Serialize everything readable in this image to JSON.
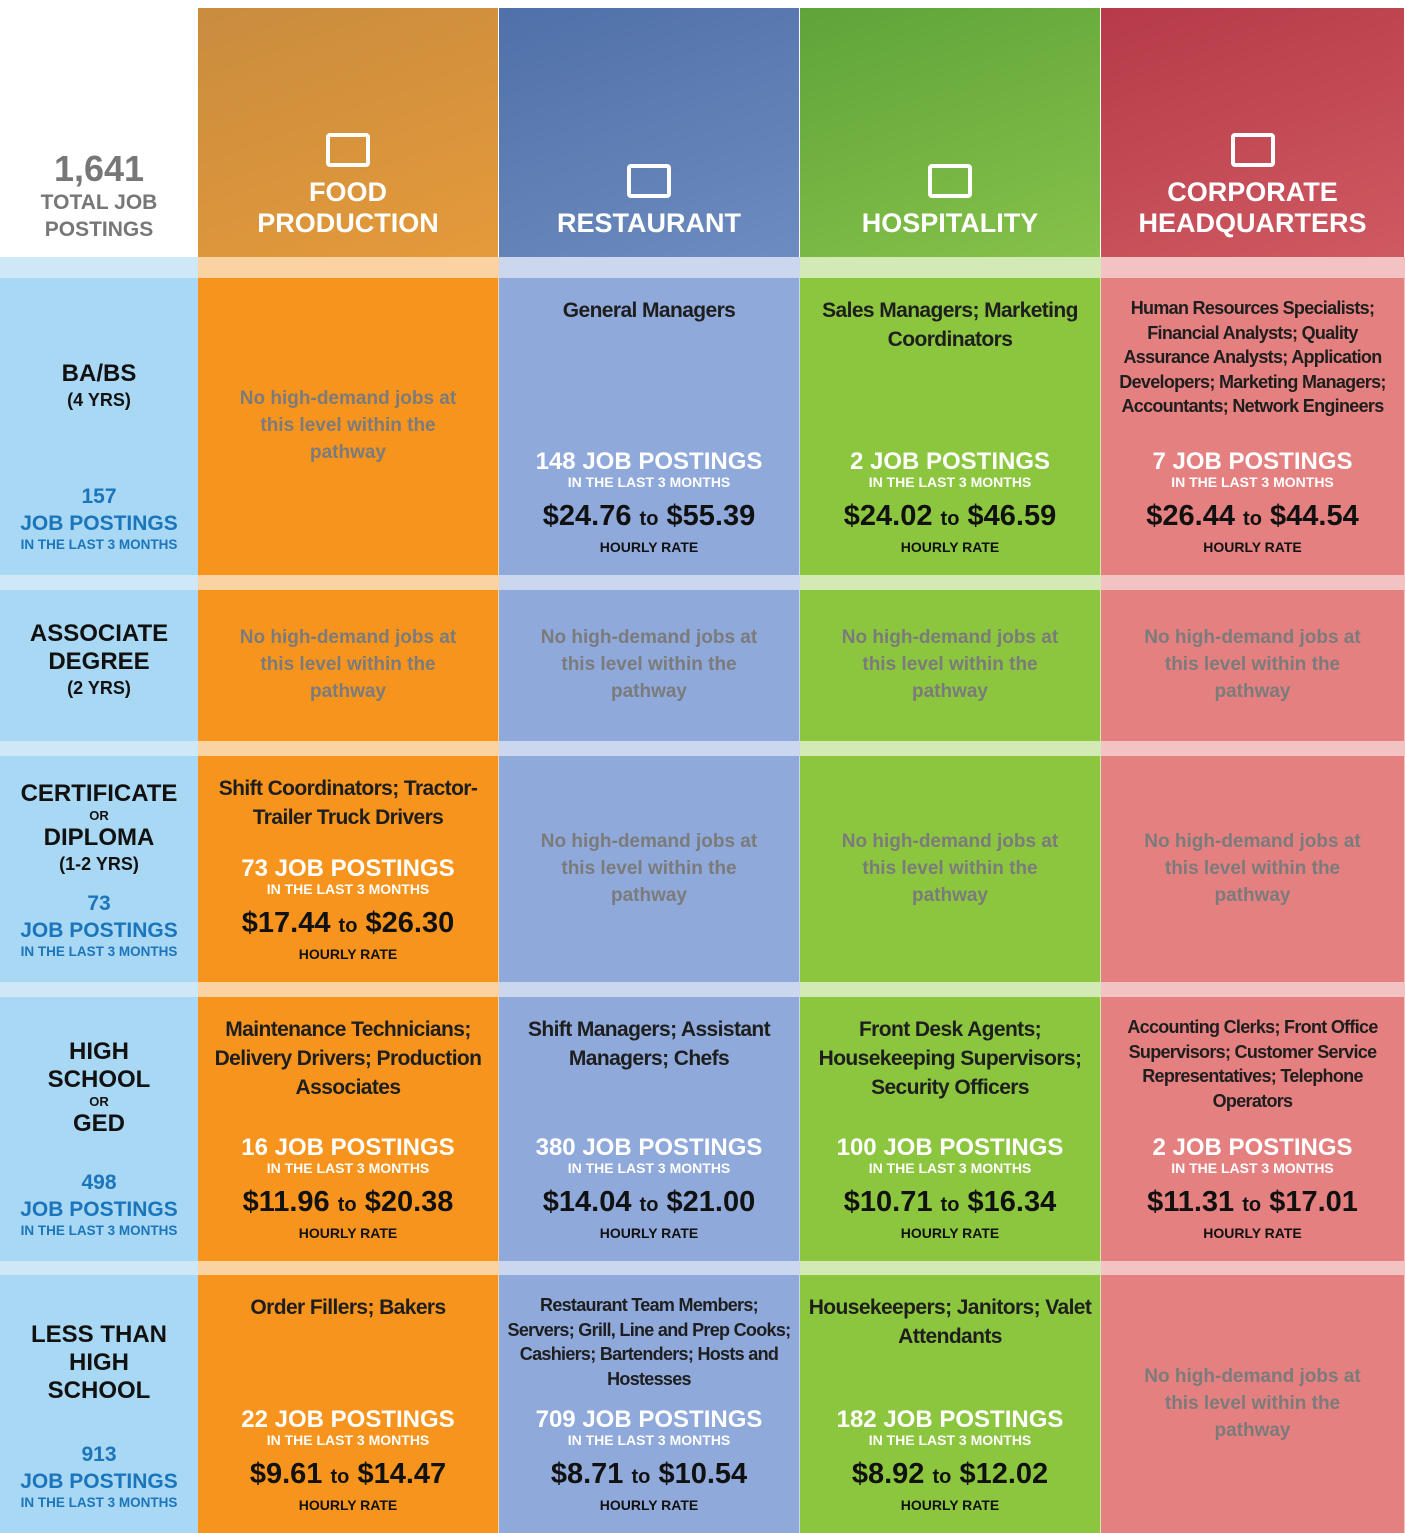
{
  "header": {
    "total": {
      "value": "1,641",
      "label": "TOTAL JOB POSTINGS"
    },
    "columns": [
      "FOOD PRODUCTION",
      "RESTAURANT",
      "HOSPITALITY",
      "CORPORATE HEADQUARTERS"
    ]
  },
  "labels": {
    "job_postings": "JOB POSTINGS",
    "recent": "IN THE LAST 3 MONTHS",
    "hourly": "HOURLY RATE",
    "to": "to",
    "none": "No high-demand jobs at this level within the pathway"
  },
  "rows": [
    {
      "level": [
        {
          "text": "BA/BS",
          "size": "big"
        },
        {
          "text": "(4 YRS)",
          "size": "yrs"
        }
      ],
      "postings": 157,
      "cells": [
        null,
        {
          "jobs": "General Managers",
          "postings": 148,
          "low": "$24.76",
          "high": "$55.39"
        },
        {
          "jobs": "Sales Managers; Marketing Coordinators",
          "postings": 2,
          "low": "$24.02",
          "high": "$46.59"
        },
        {
          "jobs": "Human Resources Specialists; Financial Analysts; Quality Assurance Analysts; Application Developers; Marketing Managers; Accountants; Network Engineers",
          "postings": 7,
          "low": "$26.44",
          "high": "$44.54"
        }
      ]
    },
    {
      "level": [
        {
          "text": "ASSOCIATE DEGREE",
          "size": "big"
        },
        {
          "text": "(2 YRS)",
          "size": "yrs"
        }
      ],
      "postings": null,
      "cells": [
        null,
        null,
        null,
        null
      ]
    },
    {
      "level": [
        {
          "text": "CERTIFICATE",
          "size": "big"
        },
        {
          "text": "OR",
          "size": "or"
        },
        {
          "text": "DIPLOMA",
          "size": "big"
        },
        {
          "text": "(1-2 YRS)",
          "size": "yrs"
        }
      ],
      "postings": 73,
      "cells": [
        {
          "jobs": "Shift Coordinators; Tractor-Trailer Truck Drivers",
          "postings": 73,
          "low": "$17.44",
          "high": "$26.30"
        },
        null,
        null,
        null
      ]
    },
    {
      "level": [
        {
          "text": "HIGH SCHOOL",
          "size": "big"
        },
        {
          "text": "OR",
          "size": "or"
        },
        {
          "text": "GED",
          "size": "big"
        }
      ],
      "postings": 498,
      "cells": [
        {
          "jobs": "Maintenance Technicians; Delivery Drivers; Production Associates",
          "postings": 16,
          "low": "$11.96",
          "high": "$20.38"
        },
        {
          "jobs": "Shift Managers; Assistant Managers; Chefs",
          "postings": 380,
          "low": "$14.04",
          "high": "$21.00"
        },
        {
          "jobs": "Front Desk Agents; Housekeeping Supervisors; Security Officers",
          "postings": 100,
          "low": "$10.71",
          "high": "$16.34"
        },
        {
          "jobs": "Accounting Clerks; Front Office Supervisors; Customer Service Representatives; Telephone Operators",
          "postings": 2,
          "low": "$11.31",
          "high": "$17.01"
        }
      ]
    },
    {
      "level": [
        {
          "text": "LESS THAN HIGH SCHOOL",
          "size": "big"
        }
      ],
      "postings": 913,
      "cells": [
        {
          "jobs": "Order Fillers; Bakers",
          "postings": 22,
          "low": "$9.61",
          "high": "$14.47"
        },
        {
          "jobs": "Restaurant Team Members; Servers; Grill, Line and Prep Cooks; Cashiers; Bartenders; Hosts and Hostesses",
          "postings": 709,
          "low": "$8.71",
          "high": "$10.54"
        },
        {
          "jobs": "Housekeepers; Janitors; Valet Attendants",
          "postings": 182,
          "low": "$8.92",
          "high": "$12.02"
        },
        null
      ]
    }
  ]
}
